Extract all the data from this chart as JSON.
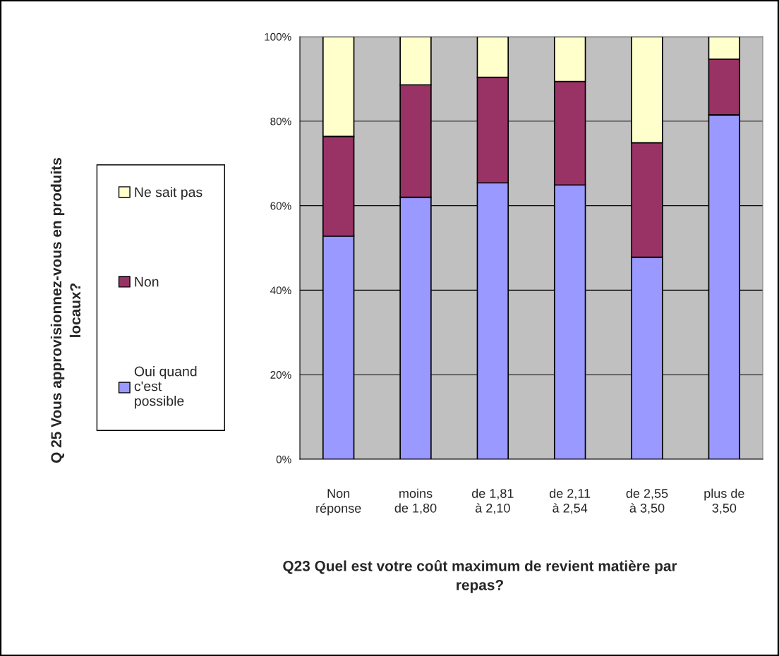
{
  "chart_data": {
    "type": "bar",
    "stacked": true,
    "xlabel": "Q23 Quel est votre coût maximum de revient matière par\nrepas?",
    "annotations": [
      "Q 25 Vous approvisionnez-vous en produits\nlocaux?"
    ],
    "categories": [
      "Non\nréponse",
      "moins\nde 1,80",
      "de 1,81\nà 2,10",
      "de 2,11\nà 2,54",
      "de 2,55\nà 3,50",
      "plus de\n3,50"
    ],
    "series": [
      {
        "name": "Oui quand\nc'est\npossible",
        "color": "#9999ff",
        "values": [
          52.8,
          62.0,
          65.4,
          64.9,
          47.8,
          81.5
        ]
      },
      {
        "name": "Non",
        "color": "#993366",
        "values": [
          23.6,
          26.6,
          25.0,
          24.5,
          27.1,
          13.2
        ]
      },
      {
        "name": "Ne sait pas",
        "color": "#ffffcc",
        "values": [
          23.6,
          11.4,
          9.6,
          10.6,
          25.1,
          5.3
        ]
      }
    ],
    "ylim": [
      0,
      100
    ],
    "yticks": [
      {
        "value": 0,
        "label": "0%"
      },
      {
        "value": 20,
        "label": "20%"
      },
      {
        "value": 40,
        "label": "40%"
      },
      {
        "value": 60,
        "label": "60%"
      },
      {
        "value": 80,
        "label": "80%"
      },
      {
        "value": 100,
        "label": "100%"
      }
    ],
    "grid": "y",
    "legend": "left"
  }
}
